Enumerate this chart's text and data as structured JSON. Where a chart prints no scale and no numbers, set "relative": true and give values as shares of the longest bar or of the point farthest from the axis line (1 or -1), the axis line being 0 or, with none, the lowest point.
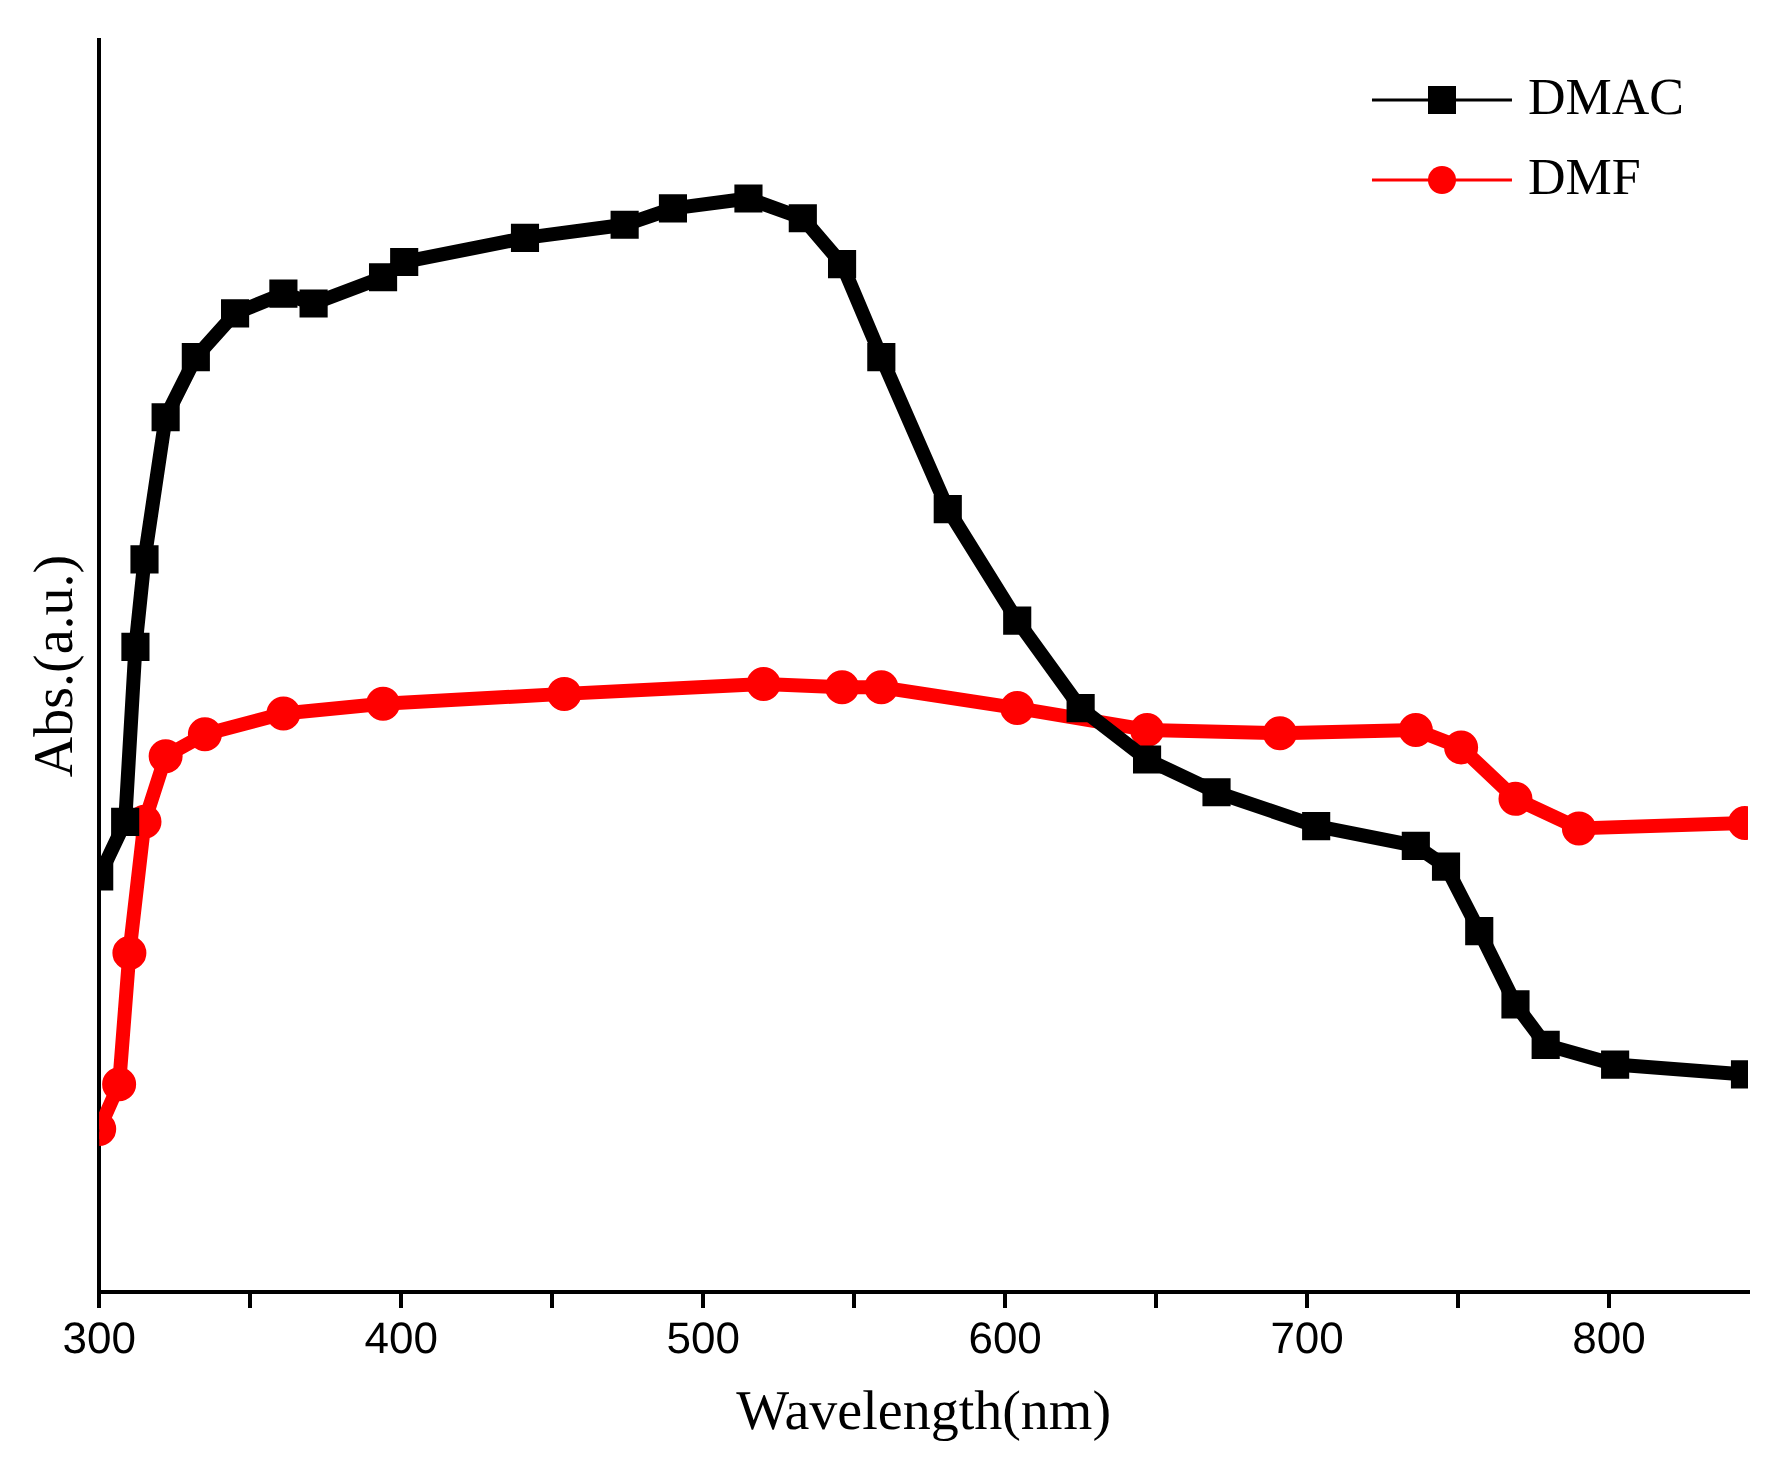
{
  "chart_data": {
    "type": "line",
    "xlabel": "Wavelength(nm)",
    "ylabel": "Abs.(a.u.)",
    "relative": true,
    "legend": "top right",
    "grid": false,
    "line_style": "solid",
    "xlim": [
      300,
      846
    ],
    "xticks": [
      300,
      {
        "value": 350,
        "label": null
      },
      400,
      {
        "value": 450,
        "label": null
      },
      500,
      {
        "value": 550,
        "label": null
      },
      600,
      {
        "value": 650,
        "label": null
      },
      700,
      {
        "value": 750,
        "label": null
      },
      800
    ],
    "series": [
      {
        "name": "DMAC",
        "color": "#000000",
        "marker": "square",
        "x": [
          300,
          308.6,
          312,
          315,
          322,
          332,
          345,
          361,
          371,
          394,
          401,
          441,
          474,
          490,
          515,
          533,
          546,
          559,
          581,
          604,
          625,
          647,
          670,
          703,
          736,
          746,
          757,
          769,
          779,
          802,
          845
        ],
        "values": [
          0.38,
          0.43,
          0.59,
          0.67,
          0.8,
          0.855,
          0.895,
          0.913,
          0.904,
          0.928,
          0.942,
          0.964,
          0.976,
          0.991,
          1,
          0.982,
          0.94,
          0.855,
          0.716,
          0.614,
          0.534,
          0.487,
          0.457,
          0.426,
          0.408,
          0.389,
          0.33,
          0.263,
          0.226,
          0.208,
          0.199
        ]
      },
      {
        "name": "DMF",
        "color": "#ff0000",
        "marker": "circle",
        "x": [
          300,
          306.6,
          310,
          315,
          322,
          335,
          361,
          394,
          454,
          520,
          546,
          559,
          604,
          647,
          691,
          736,
          751,
          769,
          790,
          845
        ],
        "values": [
          0.149,
          0.19,
          0.31,
          0.43,
          0.49,
          0.51,
          0.529,
          0.538,
          0.547,
          0.556,
          0.553,
          0.553,
          0.534,
          0.514,
          0.511,
          0.514,
          0.498,
          0.451,
          0.424,
          0.429
        ]
      }
    ]
  }
}
